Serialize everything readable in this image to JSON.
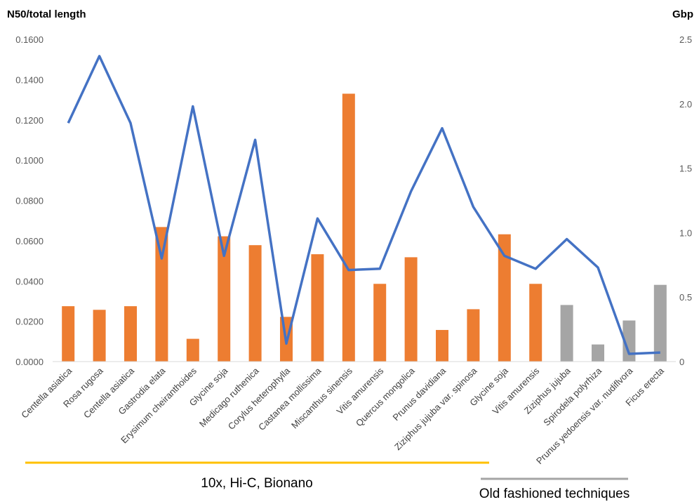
{
  "chart_data": {
    "type": "bar",
    "y_left_title": "N50/total length",
    "y_right_title": "Gbp",
    "y_left_ticks": [
      "0.0000",
      "0.0200",
      "0.0400",
      "0.0600",
      "0.0800",
      "0.1000",
      "0.1200",
      "0.1400",
      "0.1600"
    ],
    "y_right_ticks": [
      "0",
      "0.5",
      "1.0",
      "1.5",
      "2.0",
      "2.5"
    ],
    "ylim_left": [
      0,
      0.16
    ],
    "ylim_right": [
      0,
      2.5
    ],
    "grid": false,
    "categories": [
      "Centella asiatica",
      "Rosa rugosa",
      "Centella asiatica",
      "Gastrodia elata",
      "Erysimum cheiranthoides",
      "Glycine soja",
      "Medicago ruthenica",
      "Corylus heterophylla",
      "Castanea mollissima",
      "Miscanthus sinensis",
      "Vitis amurensis",
      "Quercus mongolica",
      "Prunus davidiana",
      "Ziziphus jujuba var. spinosa",
      "Glycine soja",
      "Vitis amurensis",
      "Ziziphus jujuba",
      "Spirodela polyrhiza",
      "Prunus yedoensis var. nudiflvora",
      "Ficus erecta"
    ],
    "series": [
      {
        "kind": "bar",
        "axis": "left",
        "values": [
          0.0275,
          0.0257,
          0.0275,
          0.0668,
          0.0113,
          0.0622,
          0.0578,
          0.0222,
          0.0533,
          0.133,
          0.0386,
          0.0518,
          0.0157,
          0.026,
          0.0632,
          0.0386,
          0.0281,
          0.0085,
          0.0204,
          0.0381
        ],
        "colors": [
          "#ed7d31",
          "#ed7d31",
          "#ed7d31",
          "#ed7d31",
          "#ed7d31",
          "#ed7d31",
          "#ed7d31",
          "#ed7d31",
          "#ed7d31",
          "#ed7d31",
          "#ed7d31",
          "#ed7d31",
          "#ed7d31",
          "#ed7d31",
          "#ed7d31",
          "#ed7d31",
          "#a5a5a5",
          "#a5a5a5",
          "#a5a5a5",
          "#a5a5a5"
        ]
      },
      {
        "kind": "line",
        "axis": "right",
        "color": "#4472c4",
        "values": [
          1.85,
          2.37,
          1.85,
          0.8,
          1.98,
          0.82,
          1.72,
          0.14,
          1.11,
          0.71,
          0.72,
          1.32,
          1.81,
          1.2,
          0.82,
          0.72,
          0.95,
          0.73,
          0.06,
          0.07
        ]
      }
    ],
    "groups": [
      {
        "label": "10x, Hi-C, Bionano",
        "color": "#ffc000",
        "from": 0,
        "to": 13
      },
      {
        "label": "Old fashioned techniques",
        "color": "#a5a5a5",
        "from": 14,
        "to": 19
      }
    ]
  }
}
